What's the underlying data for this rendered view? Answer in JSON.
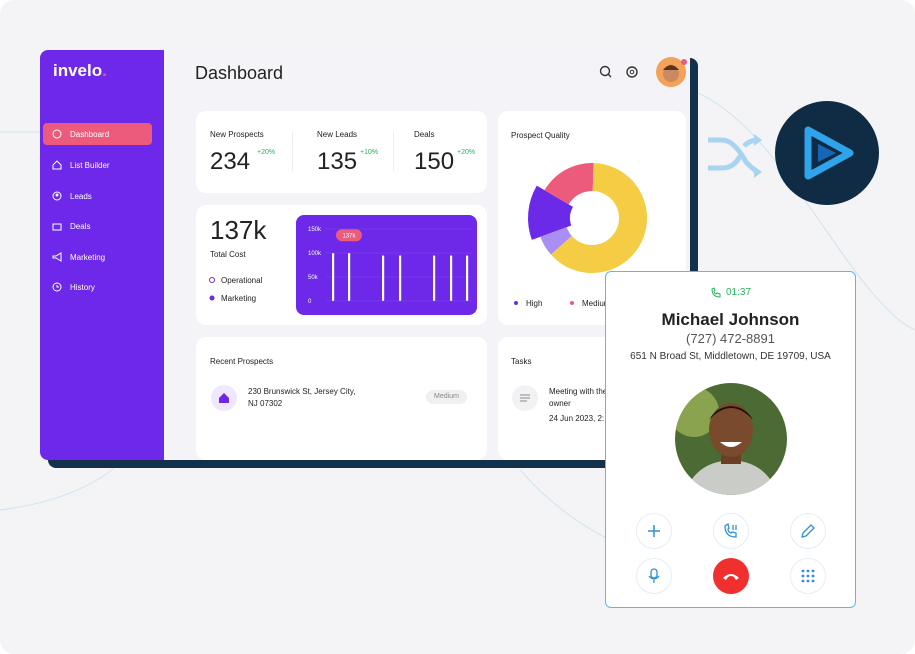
{
  "sidebar": {
    "logo": "invelo",
    "menu": [
      "Dashboard",
      "List Builder",
      "Leads",
      "Deals",
      "Marketing",
      "History"
    ]
  },
  "header": {
    "title": "Dashboard"
  },
  "stats": [
    {
      "label": "New Prospects",
      "value": "234",
      "change": "+20%"
    },
    {
      "label": "New Leads",
      "value": "135",
      "change": "+10%"
    },
    {
      "label": "Deals",
      "value": "150",
      "change": "+20%"
    }
  ],
  "cost": {
    "value": "137k",
    "label": "Total Cost",
    "legend": [
      "Operational",
      "Marketing"
    ]
  },
  "cost_chart": {
    "type": "bar",
    "categories": [
      null,
      null,
      null,
      null,
      null,
      null,
      null
    ],
    "values": [
      100000,
      100000,
      95000,
      95000,
      95000,
      95000,
      95000
    ],
    "color": "#ffffff",
    "ylim": [
      0,
      150000
    ],
    "yticks": [
      0,
      {
        "value": 50000,
        "label": "50k"
      },
      {
        "value": 100000,
        "label": "100k"
      },
      {
        "value": 150000,
        "label": "150k"
      }
    ],
    "annotation": {
      "value": 137000,
      "label": "137k"
    }
  },
  "quality": {
    "title": "Prospect Quality",
    "chart": {
      "type": "pie",
      "categories": [
        "High",
        "Medium",
        null,
        null
      ],
      "values": [
        14,
        17,
        63,
        6
      ],
      "colors": [
        "#6a2ae8",
        "#ec5b7b",
        "#f5cd45",
        "#a98ef3"
      ]
    }
  },
  "recent": {
    "title": "Recent Prospects",
    "items": [
      {
        "address": "230 Brunswick St, Jersey City, NJ 07302",
        "tag": "Medium"
      }
    ]
  },
  "tasks": {
    "title": "Tasks",
    "items": [
      {
        "text": "Meeting with the owner",
        "date": "24 Jun 2023, 2:"
      }
    ]
  },
  "call": {
    "timer": "01:37",
    "name": "Michael Johnson",
    "phone": "(727) 472-8891",
    "address": "651 N Broad St, Middletown, DE 19709, USA"
  }
}
